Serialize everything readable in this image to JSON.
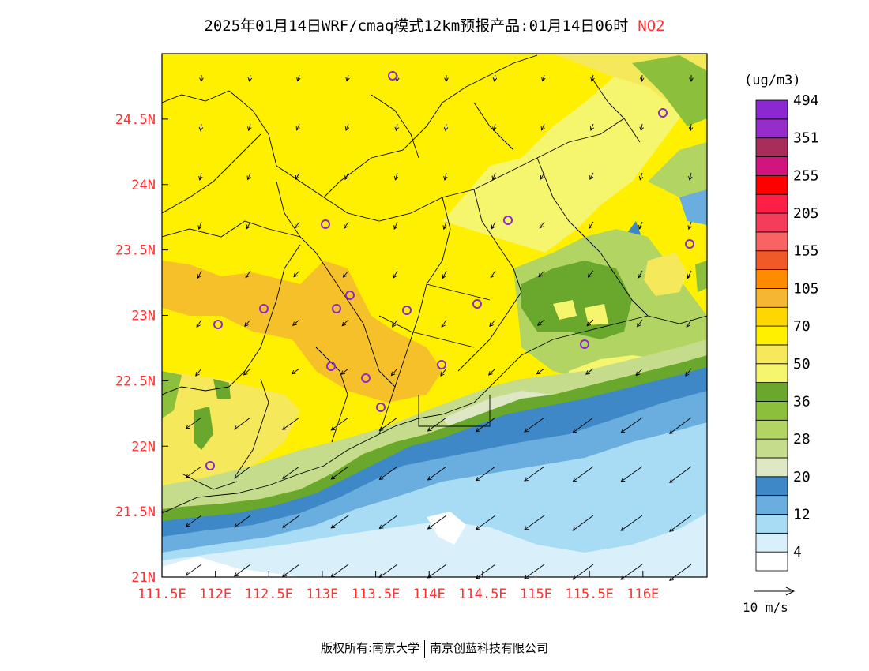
{
  "title": {
    "main": "2025年01月14日WRF/cmaq模式12km预报产品:01月14日06时",
    "pollutant": "NO2"
  },
  "map": {
    "lat_labels": [
      "24.5N",
      "24N",
      "23.5N",
      "23N",
      "22.5N",
      "22N",
      "21.5N",
      "21N"
    ],
    "lat_values": [
      24.5,
      24,
      23.5,
      23,
      22.5,
      22,
      21.5,
      21
    ],
    "lon_labels": [
      "111.5E",
      "112E",
      "112.5E",
      "113E",
      "113.5E",
      "114E",
      "114.5E",
      "115E",
      "115.5E",
      "116E"
    ],
    "lon_values": [
      111.5,
      112,
      112.5,
      113,
      113.5,
      114,
      114.5,
      115,
      115.5,
      116
    ],
    "lat_range": [
      21,
      25
    ],
    "lon_range": [
      111.5,
      116.6
    ],
    "label_color": "#ff3030",
    "station_marker": "purple-circle"
  },
  "legend": {
    "unit": "(ug/m3)",
    "colors": [
      "#ffffff",
      "#d9f0fa",
      "#a8dcf5",
      "#6aaedf",
      "#3e88c8",
      "#dfe8c4",
      "#c4dc8c",
      "#b1d463",
      "#8cbf3c",
      "#6aa82d",
      "#f5f56e",
      "#f5e85a",
      "#fff000",
      "#ffd700",
      "#f5b733",
      "#ff8c00",
      "#f05a28",
      "#f86464",
      "#f53c5a",
      "#ff1e46",
      "#ff0000",
      "#d2147f",
      "#a82d5a",
      "#962dc8",
      "#8c28d2"
    ],
    "labels": [
      "4",
      "12",
      "20",
      "28",
      "36",
      "50",
      "70",
      "105",
      "155",
      "205",
      "255",
      "351",
      "494"
    ],
    "label_color": "#000000"
  },
  "wind_reference": {
    "label": "10 m/s"
  },
  "footer": {
    "left": "版权所有:南京大学",
    "right": "南京创蓝科技有限公司"
  }
}
